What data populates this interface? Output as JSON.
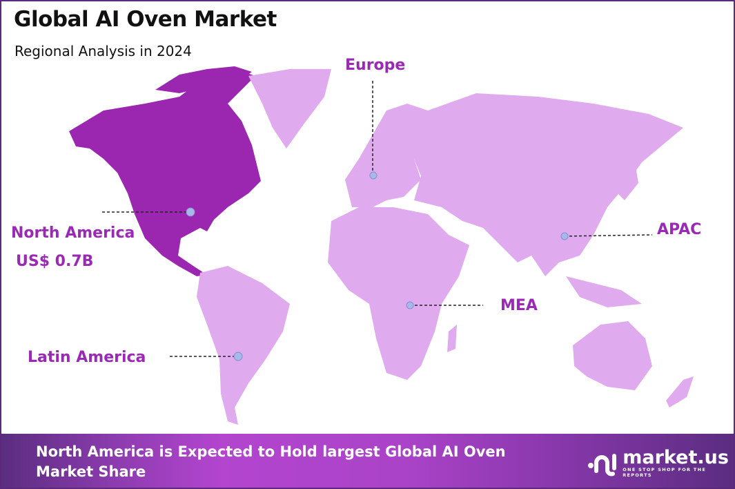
{
  "header": {
    "title": "Global AI Oven Market",
    "subtitle": "Regional Analysis in 2024"
  },
  "colors": {
    "highlight_region": "#9b27b0",
    "other_regions": "#e0aaef",
    "label": "#9a2ab5",
    "marker": "#a9b8e8",
    "border": "#5b2a7d"
  },
  "regions": [
    {
      "name": "North America",
      "value": "US$ 0.7B",
      "highlighted": true
    },
    {
      "name": "Europe",
      "highlighted": false
    },
    {
      "name": "APAC",
      "highlighted": false
    },
    {
      "name": "MEA",
      "highlighted": false
    },
    {
      "name": "Latin America",
      "highlighted": false
    }
  ],
  "footer": {
    "text": "North America is Expected to Hold largest Global AI Oven Market Share"
  },
  "logo": {
    "name": "market.us",
    "tagline": "ONE STOP SHOP FOR THE REPORTS"
  }
}
